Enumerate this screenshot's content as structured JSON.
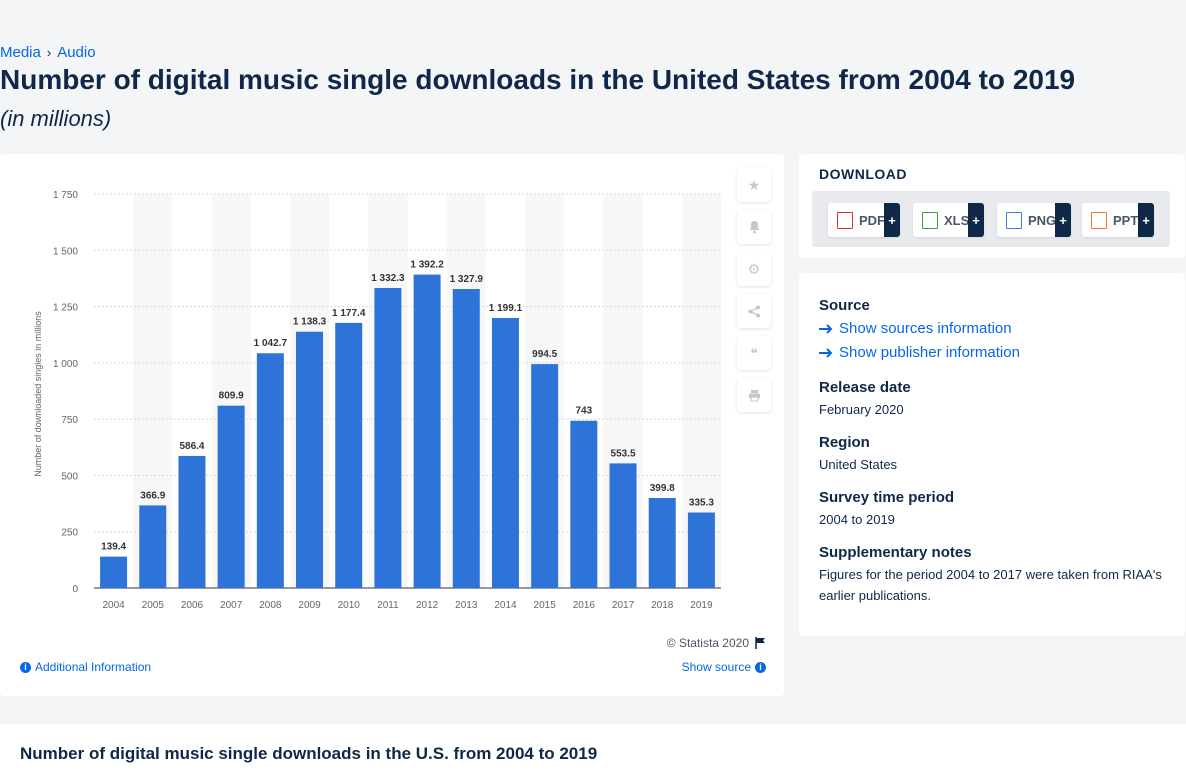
{
  "breadcrumb": {
    "items": [
      "Media",
      "Audio"
    ],
    "separator": "›"
  },
  "title": "Number of digital music single downloads in the United States from 2004 to 2019",
  "subtitle": "(in millions)",
  "chart_data": {
    "type": "bar",
    "categories": [
      "2004",
      "2005",
      "2006",
      "2007",
      "2008",
      "2009",
      "2010",
      "2011",
      "2012",
      "2013",
      "2014",
      "2015",
      "2016",
      "2017",
      "2018",
      "2019"
    ],
    "values": [
      139.4,
      366.9,
      586.4,
      809.9,
      1042.7,
      1138.3,
      1177.4,
      1332.3,
      1392.2,
      1327.9,
      1199.1,
      994.5,
      743,
      553.5,
      399.8,
      335.3
    ],
    "value_labels": [
      "139.4",
      "366.9",
      "586.4",
      "809.9",
      "1 042.7",
      "1 138.3",
      "1 177.4",
      "1 332.3",
      "1 392.2",
      "1 327.9",
      "1 199.1",
      "994.5",
      "743",
      "553.5",
      "399.8",
      "335.3"
    ],
    "ylabel": "Number of downloaded singles in millions",
    "xlabel": "",
    "ylim": [
      0,
      1750
    ],
    "yticks": [
      0,
      250,
      500,
      750,
      1000,
      1250,
      1500,
      1750
    ],
    "ytick_labels": [
      "0",
      "250",
      "500",
      "750",
      "1 000",
      "1 250",
      "1 500",
      "1 750"
    ],
    "grid": true,
    "bar_color": "#2e73d8"
  },
  "chart_footer": {
    "copyright": "© Statista 2020",
    "additional_info": "Additional Information",
    "show_source": "Show source"
  },
  "tools": [
    "star-icon",
    "bell-icon",
    "gear-icon",
    "share-icon",
    "quote-icon",
    "print-icon"
  ],
  "download": {
    "title": "DOWNLOAD",
    "buttons": [
      {
        "label": "PDF",
        "plus": "+",
        "icon_color": "#d9342b"
      },
      {
        "label": "XLS",
        "plus": "+",
        "icon_color": "#2f9e44"
      },
      {
        "label": "PNG",
        "plus": "+",
        "icon_color": "#3b7dd8"
      },
      {
        "label": "PPT",
        "plus": "+",
        "icon_color": "#e8792e"
      }
    ]
  },
  "meta": {
    "source_heading": "Source",
    "show_sources": "Show sources information",
    "show_publisher": "Show publisher information",
    "release_heading": "Release date",
    "release_value": "February 2020",
    "region_heading": "Region",
    "region_value": "United States",
    "survey_heading": "Survey time period",
    "survey_value": "2004 to 2019",
    "notes_heading": "Supplementary notes",
    "notes_value": "Figures for the period 2004 to 2017 were taken from RIAA's earlier publications."
  },
  "bottom": {
    "title": "Number of digital music single downloads in the U.S. from 2004 to 2019"
  }
}
